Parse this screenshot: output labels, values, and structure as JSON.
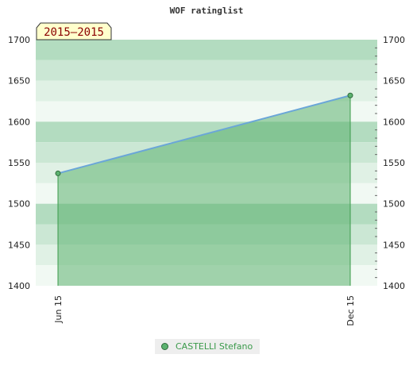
{
  "chart_data": {
    "type": "area",
    "title": "WOF ratinglist",
    "period_badge": "2015–2015",
    "x": [
      "Jun 15",
      "Dec 15"
    ],
    "series": [
      {
        "name": "CASTELLI Stefano",
        "values": [
          1537,
          1632
        ]
      }
    ],
    "ylim": [
      1400,
      1700
    ],
    "yticks": [
      1400,
      1450,
      1500,
      1550,
      1600,
      1650,
      1700
    ],
    "grid": true,
    "legend": "bottom",
    "colors": {
      "line": "#6aa6d8",
      "fill": "#5cb270",
      "marker": "#5cb270",
      "band_dark": "#b3dcc0",
      "band_mid": "#cbe7d4",
      "band_light": "#e0f1e5",
      "band_lightest": "#f1f9f3"
    }
  }
}
